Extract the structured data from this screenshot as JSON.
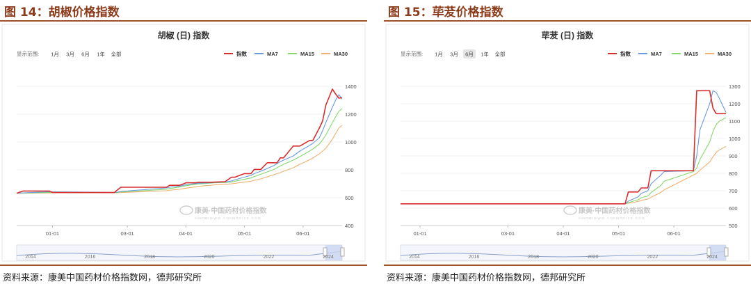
{
  "panels": [
    {
      "fig_title": "图 14：胡椒价格指数",
      "source": "资料来源：康美中国药材价格指数网，德邦研究所",
      "watermark_brand": "康美·中国药材价格指数",
      "watermark_url": "KANGMEI   W W W . C N K M P R I C E . C O M"
    },
    {
      "fig_title": "图 15：荜茇价格指数",
      "source": "资料来源：康美中国药材价格指数网，德邦研究所",
      "watermark_brand": "康美·中国药材价格指数",
      "watermark_url": "KANGMEI   W W W . C N K M P R I C E . C O M"
    }
  ],
  "chart_data": [
    {
      "type": "line",
      "title": "胡椒 (日) 指数",
      "range_label": "显示范围:",
      "range_buttons": [
        "1月",
        "3月",
        "6月",
        "1年",
        "全部"
      ],
      "range_selected": "",
      "legend": [
        "指数",
        "MA7",
        "MA15",
        "MA30"
      ],
      "legend_position": "top-right",
      "colors": [
        "#d62d2d",
        "#6a9ae0",
        "#86d86e",
        "#f0b070"
      ],
      "ylim": [
        400,
        1400
      ],
      "y_ticks": [
        "1400",
        "1200",
        "1000",
        "800",
        "600",
        "400"
      ],
      "x_ticks": [
        "01-01",
        "03-01",
        "04-01",
        "05-01",
        "06-01"
      ],
      "x_tick_t": [
        0.11,
        0.34,
        0.52,
        0.7,
        0.88
      ],
      "navigator_labels": [
        "2014",
        "2016",
        "2018",
        "2020",
        "2022",
        "2024"
      ],
      "x": [
        0.0,
        0.02,
        0.1,
        0.11,
        0.3,
        0.31,
        0.32,
        0.46,
        0.47,
        0.5,
        0.51,
        0.52,
        0.55,
        0.56,
        0.6,
        0.61,
        0.64,
        0.66,
        0.67,
        0.7,
        0.72,
        0.73,
        0.75,
        0.77,
        0.79,
        0.8,
        0.81,
        0.82,
        0.85,
        0.87,
        0.9,
        0.91,
        0.93,
        0.94,
        0.95,
        0.97,
        0.98,
        0.99,
        1.0
      ],
      "series": [
        {
          "name": "指数",
          "values": [
            632,
            648,
            648,
            637,
            637,
            657,
            675,
            675,
            689,
            689,
            697,
            707,
            707,
            711,
            711,
            712,
            715,
            747,
            747,
            773,
            773,
            803,
            803,
            851,
            851,
            851,
            886,
            886,
            971,
            971,
            1011,
            1011,
            1100,
            1150,
            1265,
            1380,
            1345,
            1315,
            1318
          ]
        },
        {
          "name": "MA7",
          "values": [
            632,
            635,
            643,
            642,
            638,
            640,
            645,
            670,
            675,
            683,
            688,
            693,
            702,
            704,
            708,
            710,
            712,
            720,
            728,
            748,
            760,
            773,
            790,
            810,
            830,
            845,
            858,
            870,
            900,
            935,
            975,
            990,
            1030,
            1080,
            1140,
            1250,
            1300,
            1340,
            1310
          ]
        },
        {
          "name": "MA15",
          "values": [
            632,
            633,
            638,
            640,
            637,
            638,
            641,
            660,
            666,
            676,
            680,
            686,
            696,
            699,
            705,
            707,
            709,
            713,
            718,
            732,
            742,
            752,
            768,
            785,
            803,
            815,
            828,
            840,
            870,
            895,
            935,
            950,
            985,
            1015,
            1050,
            1140,
            1180,
            1220,
            1240
          ]
        },
        {
          "name": "MA30",
          "values": [
            632,
            632,
            634,
            635,
            635,
            636,
            637,
            650,
            654,
            660,
            664,
            668,
            678,
            682,
            690,
            693,
            696,
            700,
            703,
            712,
            718,
            725,
            735,
            750,
            765,
            773,
            780,
            790,
            815,
            840,
            872,
            885,
            915,
            935,
            955,
            1020,
            1060,
            1100,
            1120
          ]
        }
      ]
    },
    {
      "type": "line",
      "title": "荜茇 (日) 指数",
      "range_label": "显示范围:",
      "range_buttons": [
        "1月",
        "3月",
        "6月",
        "1年",
        "全部"
      ],
      "range_selected": "6月",
      "legend": [
        "指数",
        "MA7",
        "MA15",
        "MA30"
      ],
      "legend_position": "top-right",
      "colors": [
        "#d62d2d",
        "#6a9ae0",
        "#86d86e",
        "#f0b070"
      ],
      "ylim": [
        500,
        1300
      ],
      "y_ticks": [
        "1300",
        "1200",
        "1100",
        "1000",
        "900",
        "800",
        "700",
        "600",
        "500"
      ],
      "x_ticks": [
        "01-01",
        "03-01",
        "04-01",
        "05-01",
        "06-01"
      ],
      "x_tick_t": [
        0.06,
        0.33,
        0.5,
        0.67,
        0.84
      ],
      "navigator_labels": [
        "2014",
        "2016",
        "2018",
        "2020",
        "2022",
        "2024"
      ],
      "x": [
        0.0,
        0.4,
        0.67,
        0.69,
        0.7,
        0.73,
        0.74,
        0.76,
        0.77,
        0.8,
        0.81,
        0.9,
        0.91,
        0.92,
        0.95,
        0.96,
        0.97,
        0.98,
        1.0
      ],
      "series": [
        {
          "name": "指数",
          "values": [
            625,
            625,
            625,
            625,
            693,
            693,
            716,
            716,
            815,
            815,
            815,
            815,
            1275,
            1275,
            1275,
            1175,
            1143,
            1143,
            1143
          ]
        },
        {
          "name": "MA7",
          "values": [
            625,
            625,
            625,
            625,
            640,
            665,
            685,
            700,
            740,
            790,
            810,
            815,
            900,
            1050,
            1200,
            1275,
            1265,
            1230,
            1150
          ]
        },
        {
          "name": "MA15",
          "values": [
            625,
            625,
            625,
            625,
            632,
            648,
            660,
            670,
            690,
            730,
            755,
            810,
            830,
            880,
            980,
            1040,
            1080,
            1100,
            1120
          ]
        },
        {
          "name": "MA30",
          "values": [
            625,
            625,
            625,
            625,
            628,
            638,
            645,
            652,
            663,
            690,
            705,
            790,
            800,
            818,
            865,
            895,
            920,
            935,
            955
          ]
        }
      ]
    }
  ]
}
